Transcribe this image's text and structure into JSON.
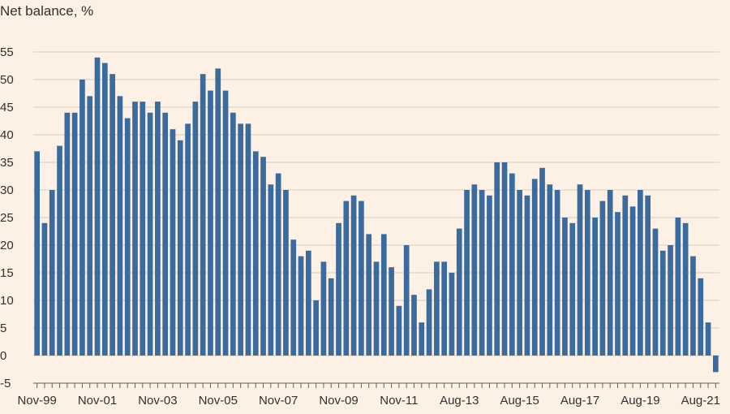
{
  "chart_data": {
    "type": "bar",
    "title": "Net balance, %",
    "xlabel": "",
    "ylabel": "",
    "ylim": [
      -5,
      55
    ],
    "yticks": [
      -5,
      0,
      5,
      10,
      15,
      20,
      25,
      30,
      35,
      40,
      45,
      50,
      55
    ],
    "grid": true,
    "legend": "none",
    "colors": {
      "bar": "#3b6a9d",
      "grid": "#d9cdc1",
      "background": "#fdf1e5",
      "text": "#33302e"
    },
    "xtick_labels": [
      "Nov-99",
      "Nov-01",
      "Nov-03",
      "Nov-05",
      "Nov-07",
      "Nov-09",
      "Nov-11",
      "Aug-13",
      "Aug-15",
      "Aug-17",
      "Aug-19",
      "Aug-21"
    ],
    "values": [
      37,
      24,
      30,
      38,
      44,
      44,
      50,
      47,
      54,
      53,
      51,
      47,
      43,
      46,
      46,
      44,
      46,
      44,
      41,
      39,
      42,
      46,
      51,
      48,
      52,
      48,
      44,
      42,
      42,
      37,
      36,
      31,
      33,
      30,
      21,
      18,
      19,
      10,
      17,
      14,
      24,
      28,
      29,
      28,
      22,
      17,
      22,
      16,
      9,
      20,
      11,
      6,
      12,
      17,
      17,
      15,
      23,
      30,
      31,
      30,
      29,
      35,
      35,
      33,
      30,
      29,
      32,
      34,
      31,
      30,
      25,
      24,
      31,
      30,
      25,
      28,
      30,
      26,
      29,
      27,
      30,
      29,
      23,
      19,
      20,
      25,
      24,
      18,
      14,
      6,
      -3
    ]
  }
}
